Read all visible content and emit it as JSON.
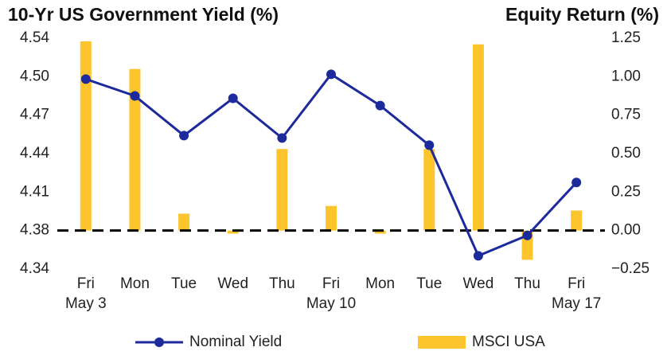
{
  "chart_data": {
    "type": "bar_line",
    "title_left": "10-Yr US Government Yield (%)",
    "title_right": "Equity Return (%)",
    "categories": [
      "Fri\nMay 3",
      "Mon",
      "Tue",
      "Wed",
      "Thu",
      "Fri\nMay 10",
      "Mon",
      "Tue",
      "Wed",
      "Thu",
      "Fri\nMay 17"
    ],
    "series": [
      {
        "name": "Nominal Yield",
        "color": "#1c2a9b",
        "type": "line",
        "axis": "y",
        "values": [
          4.502,
          4.488,
          4.455,
          4.486,
          4.453,
          4.506,
          4.48,
          4.447,
          4.355,
          4.372,
          4.416
        ]
      },
      {
        "name": "MSCI USA",
        "color": "#fcc42d",
        "type": "bar",
        "axis": "y2",
        "values": [
          1.23,
          1.05,
          0.11,
          -0.02,
          0.53,
          0.16,
          -0.02,
          0.53,
          1.21,
          -0.19,
          0.13
        ]
      }
    ],
    "ylim": [
      4.344,
      4.536
    ],
    "yticks": [
      {
        "value": 4.344,
        "label": "4.34"
      },
      {
        "value": 4.376,
        "label": "4.38"
      },
      {
        "value": 4.408,
        "label": "4.41"
      },
      {
        "value": 4.44,
        "label": "4.44"
      },
      {
        "value": 4.472,
        "label": "4.47"
      },
      {
        "value": 4.504,
        "label": "4.50"
      },
      {
        "value": 4.536,
        "label": "4.54"
      }
    ],
    "y2lim": [
      -0.25,
      1.25
    ],
    "y2ticks": [
      {
        "value": -0.25,
        "label": "−0.25"
      },
      {
        "value": 0,
        "label": "0.00"
      },
      {
        "value": 0.25,
        "label": "0.25"
      },
      {
        "value": 0.5,
        "label": "0.50"
      },
      {
        "value": 0.75,
        "label": "0.75"
      },
      {
        "value": 1,
        "label": "1.00"
      },
      {
        "value": 1.25,
        "label": "1.25"
      }
    ],
    "grid": false,
    "legend": "bottom"
  }
}
